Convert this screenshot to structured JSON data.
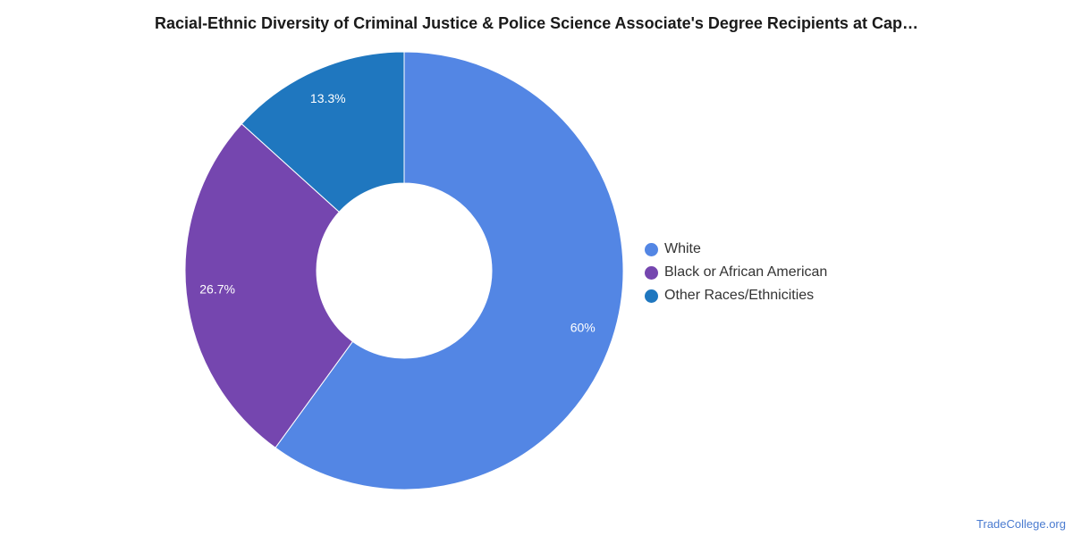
{
  "title": "Racial-Ethnic Diversity of Criminal Justice & Police Science Associate's Degree Recipients at Cap…",
  "watermark": "TradeCollege.org",
  "chart_data": {
    "type": "pie",
    "donut": true,
    "legend_position": "right",
    "categories": [
      "White",
      "Black or African American",
      "Other Races/Ethnicities"
    ],
    "values": [
      60,
      26.7,
      13.3
    ],
    "labels": [
      "60%",
      "26.7%",
      "13.3%"
    ],
    "colors": [
      "#5386E4",
      "#7546AF",
      "#1F77BF"
    ]
  }
}
